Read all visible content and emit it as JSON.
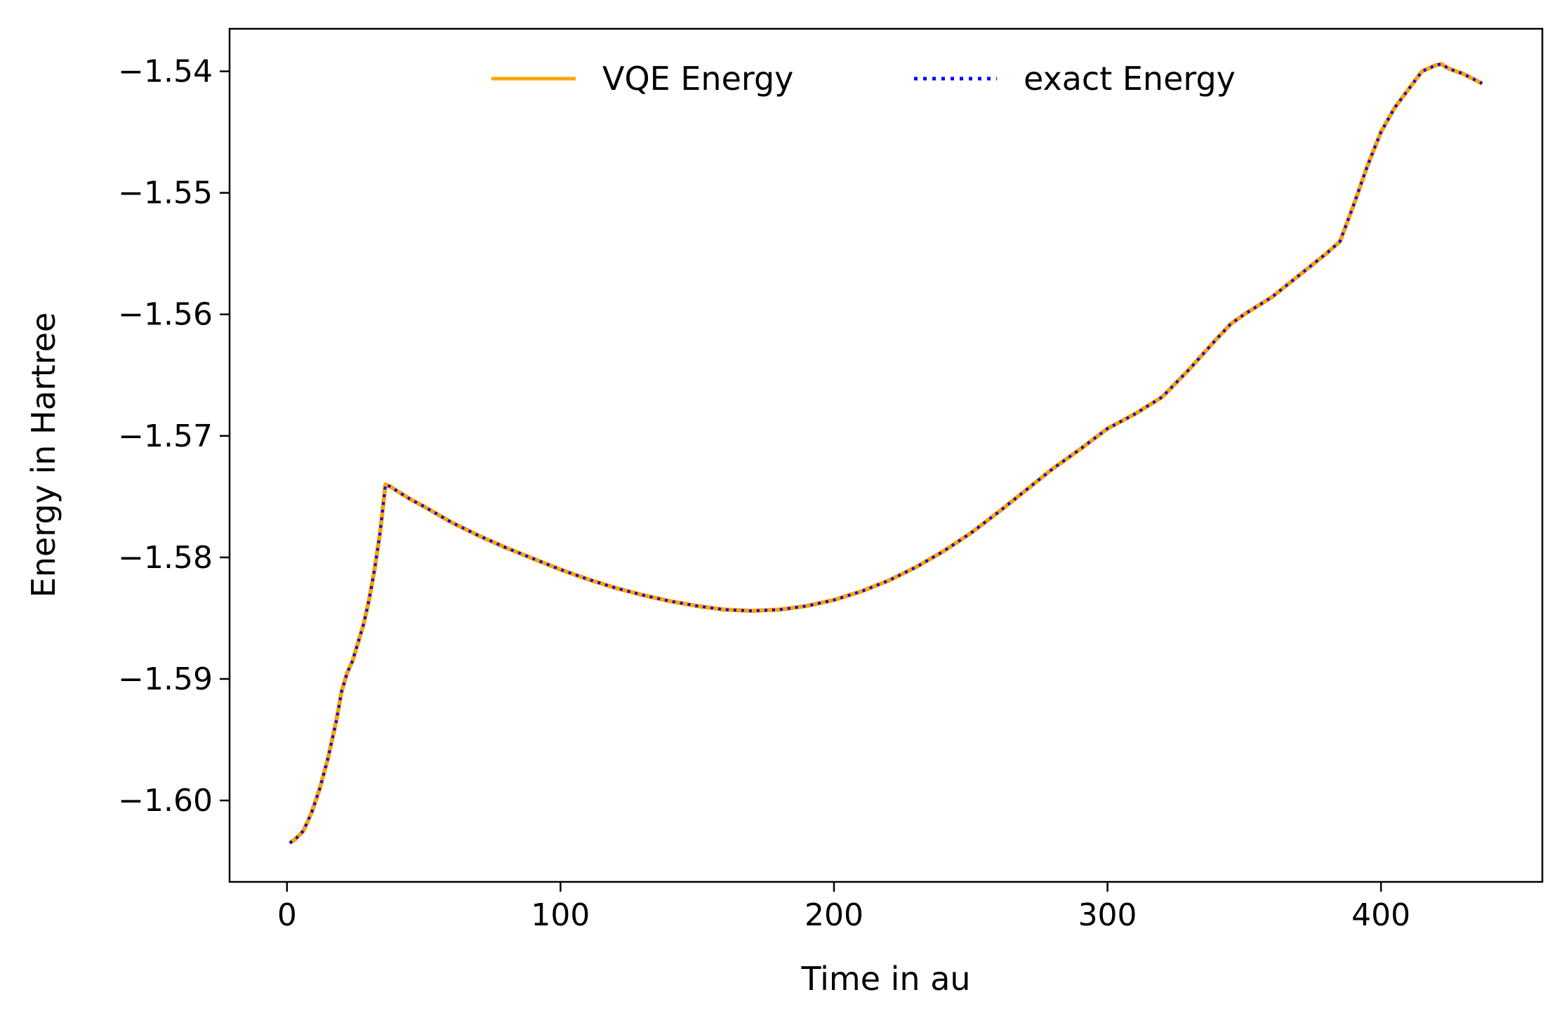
{
  "chart_data": {
    "type": "line",
    "title": "",
    "xlabel": "Time in au",
    "ylabel": "Energy in Hartree",
    "xlim": [
      -21,
      459
    ],
    "ylim": [
      -1.6067,
      -1.5365
    ],
    "xticks": [
      0,
      100,
      200,
      300,
      400
    ],
    "xtick_labels": [
      "0",
      "100",
      "200",
      "300",
      "400"
    ],
    "yticks": [
      -1.6,
      -1.59,
      -1.58,
      -1.57,
      -1.56,
      -1.55,
      -1.54
    ],
    "ytick_labels": [
      "−1.60",
      "−1.59",
      "−1.58",
      "−1.57",
      "−1.56",
      "−1.55",
      "−1.54"
    ],
    "grid": false,
    "legend_placement": "top-center",
    "x": [
      1,
      3,
      6,
      9,
      12,
      15,
      18,
      20,
      22,
      24,
      26,
      28,
      30,
      32,
      34,
      36,
      38,
      40,
      45,
      50,
      60,
      70,
      80,
      90,
      100,
      110,
      120,
      130,
      140,
      150,
      160,
      170,
      180,
      190,
      200,
      210,
      220,
      230,
      240,
      250,
      260,
      270,
      280,
      290,
      300,
      310,
      320,
      330,
      340,
      345,
      350,
      360,
      370,
      380,
      385,
      390,
      395,
      400,
      405,
      410,
      415,
      420,
      422,
      425,
      430,
      437
    ],
    "series": [
      {
        "name": "VQE Energy",
        "color": "#ffa500",
        "style": "solid",
        "values": [
          -1.6035,
          -1.6032,
          -1.6025,
          -1.601,
          -1.599,
          -1.5965,
          -1.5935,
          -1.591,
          -1.5895,
          -1.5885,
          -1.587,
          -1.5855,
          -1.5835,
          -1.581,
          -1.578,
          -1.574,
          -1.5742,
          -1.5745,
          -1.5752,
          -1.5758,
          -1.5771,
          -1.5782,
          -1.5792,
          -1.5801,
          -1.581,
          -1.5818,
          -1.5825,
          -1.5831,
          -1.5836,
          -1.584,
          -1.5843,
          -1.5844,
          -1.5843,
          -1.584,
          -1.5835,
          -1.5828,
          -1.5819,
          -1.5808,
          -1.5795,
          -1.578,
          -1.5763,
          -1.5745,
          -1.5727,
          -1.5711,
          -1.5694,
          -1.5682,
          -1.5668,
          -1.5645,
          -1.562,
          -1.5608,
          -1.56,
          -1.5586,
          -1.5568,
          -1.555,
          -1.554,
          -1.551,
          -1.5478,
          -1.545,
          -1.543,
          -1.5415,
          -1.54,
          -1.5395,
          -1.5394,
          -1.5398,
          -1.5402,
          -1.541
        ]
      },
      {
        "name": "exact Energy",
        "color": "#0000ff",
        "style": "dotted",
        "values": [
          -1.6035,
          -1.6032,
          -1.6025,
          -1.601,
          -1.599,
          -1.5965,
          -1.5935,
          -1.591,
          -1.5895,
          -1.5885,
          -1.587,
          -1.5855,
          -1.5835,
          -1.581,
          -1.578,
          -1.574,
          -1.5742,
          -1.5745,
          -1.5752,
          -1.5758,
          -1.5771,
          -1.5782,
          -1.5792,
          -1.5801,
          -1.581,
          -1.5818,
          -1.5825,
          -1.5831,
          -1.5836,
          -1.584,
          -1.5843,
          -1.5844,
          -1.5843,
          -1.584,
          -1.5835,
          -1.5828,
          -1.5819,
          -1.5808,
          -1.5795,
          -1.578,
          -1.5763,
          -1.5745,
          -1.5727,
          -1.5711,
          -1.5694,
          -1.5682,
          -1.5668,
          -1.5645,
          -1.562,
          -1.5608,
          -1.56,
          -1.5586,
          -1.5568,
          -1.555,
          -1.554,
          -1.551,
          -1.5478,
          -1.545,
          -1.543,
          -1.5415,
          -1.54,
          -1.5395,
          -1.5394,
          -1.5398,
          -1.5402,
          -1.541
        ]
      }
    ]
  }
}
